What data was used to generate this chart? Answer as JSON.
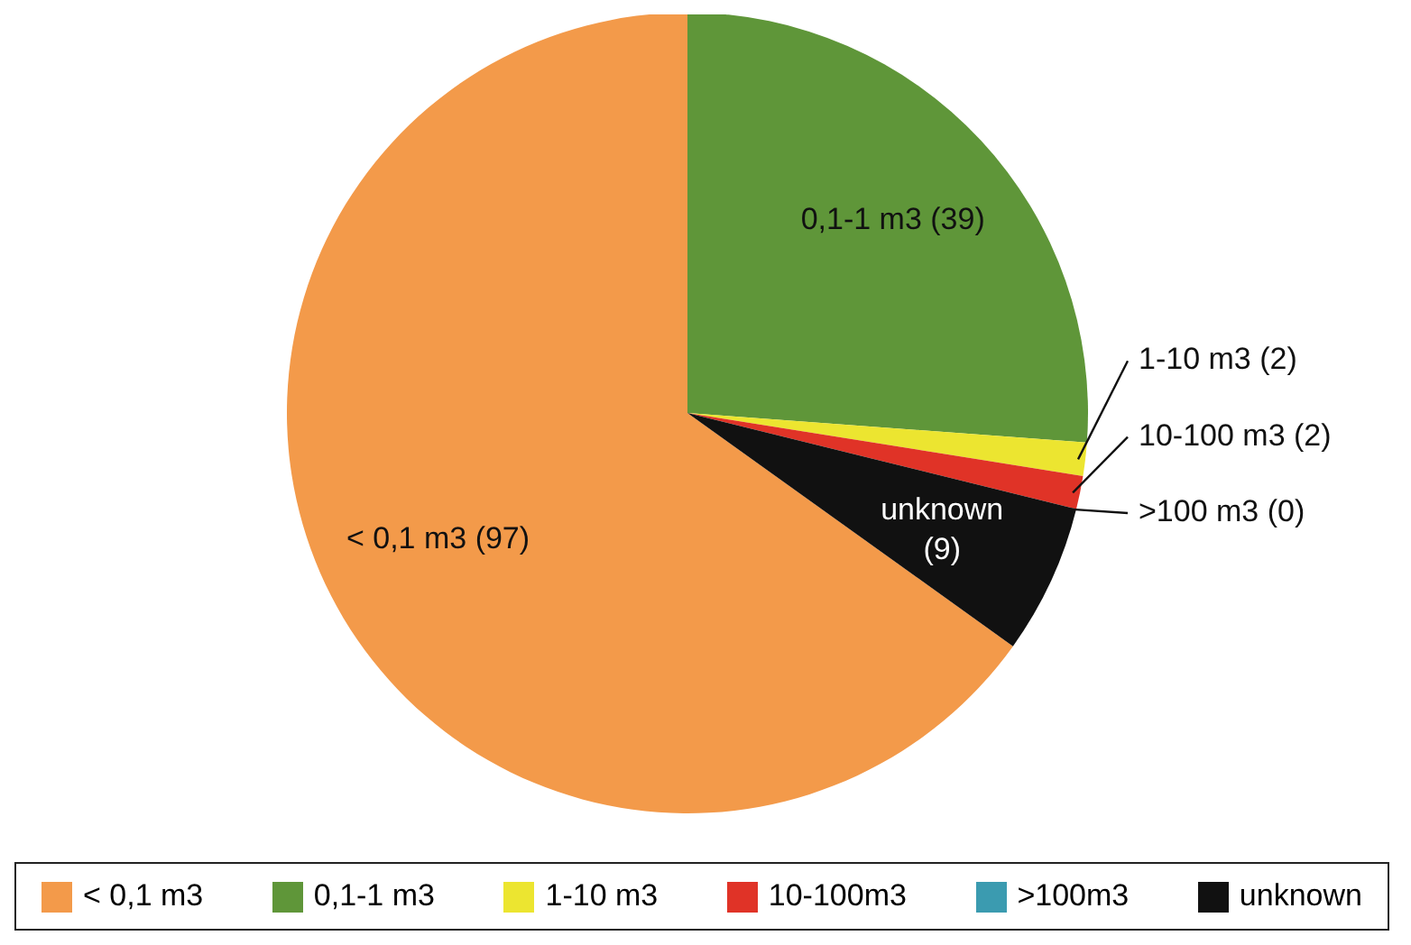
{
  "chart_data": {
    "type": "pie",
    "categories": [
      "< 0,1 m3",
      "0,1-1 m3",
      "1-10 m3",
      "10-100m3",
      ">100m3",
      "unknown"
    ],
    "values": [
      97,
      39,
      2,
      2,
      0,
      9
    ],
    "colors": [
      "#f39a4a",
      "#5f9639",
      "#ece530",
      "#e03327",
      "#3b9bb0",
      "#111111"
    ],
    "value_labels": [
      "< 0,1 m3 (97)",
      "0,1-1 m3 (39)",
      "1-10 m3 (2)",
      "10-100 m3 (2)",
      ">100 m3 (0)",
      "unknown (9)"
    ],
    "legend": "bottom"
  }
}
